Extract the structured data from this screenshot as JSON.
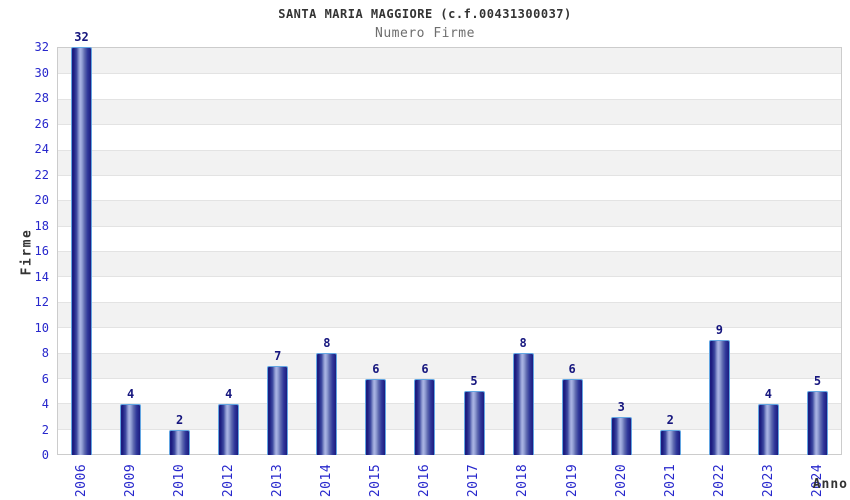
{
  "chart_data": {
    "type": "bar",
    "title": "SANTA MARIA MAGGIORE (c.f.00431300037)",
    "subtitle": "Numero Firme",
    "xlabel": "Anno",
    "ylabel": "Firme",
    "categories": [
      "2006",
      "2009",
      "2010",
      "2012",
      "2013",
      "2014",
      "2015",
      "2016",
      "2017",
      "2018",
      "2019",
      "2020",
      "2021",
      "2022",
      "2023",
      "2024"
    ],
    "values": [
      32,
      4,
      2,
      4,
      7,
      8,
      6,
      6,
      5,
      8,
      6,
      3,
      2,
      9,
      4,
      5
    ],
    "ylim": [
      0,
      32
    ],
    "ytick_step": 2,
    "grid": "alternating horizontal bands, gridline every 2 units",
    "legend": "none",
    "colors": {
      "title": "#333333",
      "subtitle": "#6e6e6e",
      "axis_label": "#333333",
      "tick_label": "#2727cc",
      "value_label": "#16167e",
      "band_gray": "#f2f2f2",
      "band_white": "#ffffff",
      "grid_line": "#e3e3e3",
      "plot_border": "#cccccc",
      "bar_dark": "#1c1c80",
      "bar_mid": "#5e6ab0",
      "bar_highlight": "#aab4e4",
      "bar_border": "#63a6e2"
    }
  }
}
